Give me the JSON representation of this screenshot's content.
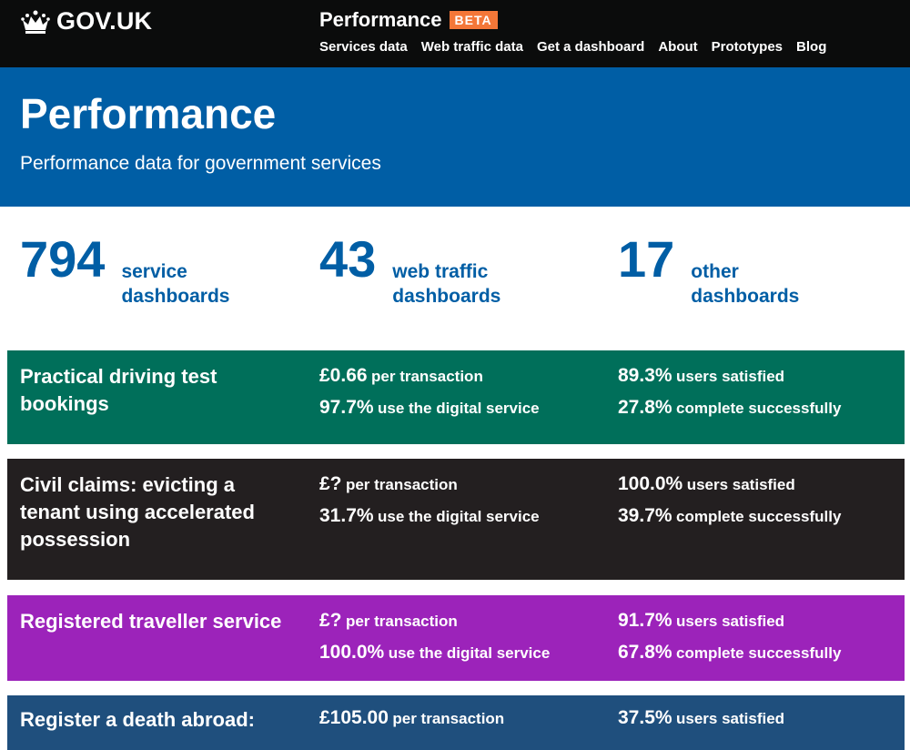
{
  "header": {
    "logo_text": "GOV.UK",
    "product_name": "Performance",
    "beta_label": "BETA",
    "nav": [
      {
        "label": "Services data"
      },
      {
        "label": "Web traffic data"
      },
      {
        "label": "Get a dashboard"
      },
      {
        "label": "About"
      },
      {
        "label": "Prototypes"
      },
      {
        "label": "Blog"
      }
    ]
  },
  "hero": {
    "title": "Performance",
    "subtitle": "Performance data for government services"
  },
  "counts": [
    {
      "value": "794",
      "label": "service dashboards"
    },
    {
      "value": "43",
      "label": "web traffic dashboards"
    },
    {
      "value": "17",
      "label": "other dashboards"
    }
  ],
  "services": [
    {
      "name": "Practical driving test bookings",
      "cost": "£0.66",
      "cost_label": "per transaction",
      "digital": "97.7%",
      "digital_label": "use the digital service",
      "satisfaction": "89.3%",
      "satisfaction_label": "users satisfied",
      "completion": "27.8%",
      "completion_label": "complete successfully",
      "color": "#006f5a"
    },
    {
      "name": "Civil claims: evicting a tenant using accelerated possession",
      "cost": "£?",
      "cost_label": "per transaction",
      "digital": "31.7%",
      "digital_label": "use the digital service",
      "satisfaction": "100.0%",
      "satisfaction_label": "users satisfied",
      "completion": "39.7%",
      "completion_label": "complete successfully",
      "color": "#231f20"
    },
    {
      "name": "Registered traveller service",
      "cost": "£?",
      "cost_label": "per transaction",
      "digital": "100.0%",
      "digital_label": "use the digital service",
      "satisfaction": "91.7%",
      "satisfaction_label": "users satisfied",
      "completion": "67.8%",
      "completion_label": "complete successfully",
      "color": "#9c23ba"
    },
    {
      "name": "Register a death abroad:",
      "cost": "£105.00",
      "cost_label": "per transaction",
      "satisfaction": "37.5%",
      "satisfaction_label": "users satisfied",
      "color": "#1f4f7d"
    }
  ],
  "colors": {
    "header_bg": "#0b0c0c",
    "hero_bg": "#005ea5",
    "beta_tag": "#f47738",
    "link_blue": "#005ea5"
  }
}
